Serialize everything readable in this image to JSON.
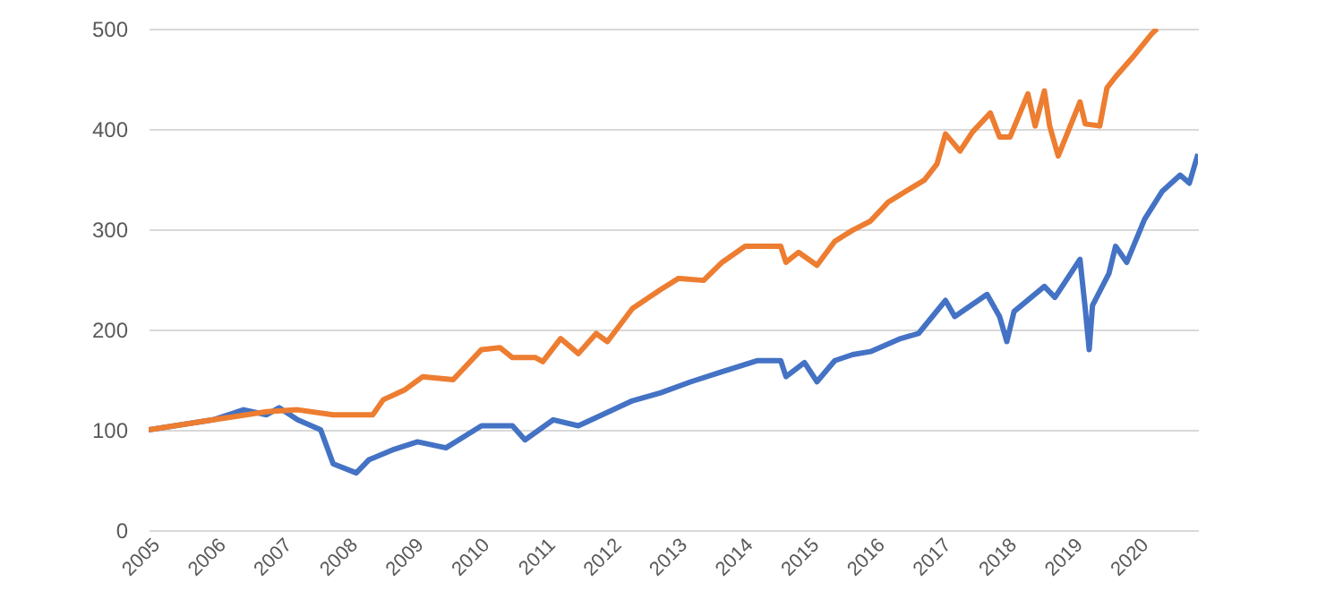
{
  "chart_data": {
    "type": "line",
    "series": [
      {
        "color": "#4472c4",
        "x": [
          2005.0,
          2005.98,
          2006.44,
          2006.79,
          2006.98,
          2007.26,
          2007.61,
          2007.8,
          2008.15,
          2008.34,
          2008.7,
          2009.08,
          2009.51,
          2010.05,
          2010.52,
          2010.71,
          2011.14,
          2011.52,
          2011.88,
          2012.34,
          2012.77,
          2013.23,
          2013.7,
          2014.24,
          2014.59,
          2014.67,
          2014.95,
          2015.14,
          2015.41,
          2015.68,
          2015.95,
          2016.41,
          2016.68,
          2017.09,
          2017.23,
          2017.72,
          2017.91,
          2018.02,
          2018.13,
          2018.59,
          2018.75,
          2019.13,
          2019.21,
          2019.27,
          2019.32,
          2019.57,
          2019.67,
          2019.84,
          2020.11,
          2020.38,
          2020.65,
          2020.79,
          2020.92
        ],
        "values": [
          100,
          110,
          120,
          115,
          122,
          110,
          100,
          66,
          57,
          70,
          80,
          88,
          82,
          104,
          104,
          90,
          110,
          104,
          115,
          129,
          137,
          148,
          158,
          169,
          169,
          153,
          167,
          148,
          169,
          175,
          178,
          191,
          196,
          229,
          213,
          235,
          213,
          188,
          218,
          243,
          232,
          270,
          221,
          180,
          224,
          256,
          283,
          267,
          310,
          338,
          354,
          346,
          375
        ]
      },
      {
        "color": "#ed7d31",
        "x": [
          2005.0,
          2005.98,
          2006.79,
          2007.26,
          2007.8,
          2008.4,
          2008.56,
          2008.89,
          2009.16,
          2009.62,
          2010.05,
          2010.33,
          2010.52,
          2010.87,
          2010.98,
          2011.25,
          2011.52,
          2011.79,
          2011.96,
          2012.34,
          2012.77,
          2013.04,
          2013.42,
          2013.7,
          2014.05,
          2014.4,
          2014.59,
          2014.67,
          2014.86,
          2015.14,
          2015.41,
          2015.68,
          2015.95,
          2016.22,
          2016.49,
          2016.77,
          2016.96,
          2017.09,
          2017.31,
          2017.5,
          2017.77,
          2017.91,
          2018.07,
          2018.34,
          2018.45,
          2018.59,
          2018.67,
          2018.8,
          2019.13,
          2019.21,
          2019.43,
          2019.54,
          2019.67,
          2019.95,
          2020.22,
          2020.3
        ],
        "values": [
          100,
          110,
          118,
          120,
          115,
          115,
          130,
          140,
          153,
          150,
          180,
          182,
          172,
          172,
          168,
          191,
          176,
          196,
          188,
          221,
          240,
          251,
          249,
          267,
          283,
          283,
          283,
          267,
          277,
          264,
          288,
          299,
          308,
          327,
          338,
          349,
          365,
          395,
          378,
          397,
          416,
          392,
          392,
          435,
          403,
          438,
          403,
          373,
          427,
          405,
          403,
          441,
          452,
          473,
          495,
          500
        ]
      }
    ],
    "xlim": [
      2005,
      2020.92
    ],
    "xticks": [
      {
        "value": 2005,
        "label": "2005"
      },
      {
        "value": 2006,
        "label": "2006"
      },
      {
        "value": 2007,
        "label": "2007"
      },
      {
        "value": 2008,
        "label": "2008"
      },
      {
        "value": 2009,
        "label": "2009"
      },
      {
        "value": 2010,
        "label": "2010"
      },
      {
        "value": 2011,
        "label": "2011"
      },
      {
        "value": 2012,
        "label": "2012"
      },
      {
        "value": 2013,
        "label": "2013"
      },
      {
        "value": 2014,
        "label": "2014"
      },
      {
        "value": 2015,
        "label": "2015"
      },
      {
        "value": 2016,
        "label": "2016"
      },
      {
        "value": 2017,
        "label": "2017"
      },
      {
        "value": 2018,
        "label": "2018"
      },
      {
        "value": 2019,
        "label": "2019"
      },
      {
        "value": 2020,
        "label": "2020"
      }
    ],
    "ylim": [
      0,
      500
    ],
    "yticks": [
      0,
      100,
      200,
      300,
      400,
      500
    ],
    "grid": "y",
    "marker": "none",
    "line_style": "solid"
  }
}
